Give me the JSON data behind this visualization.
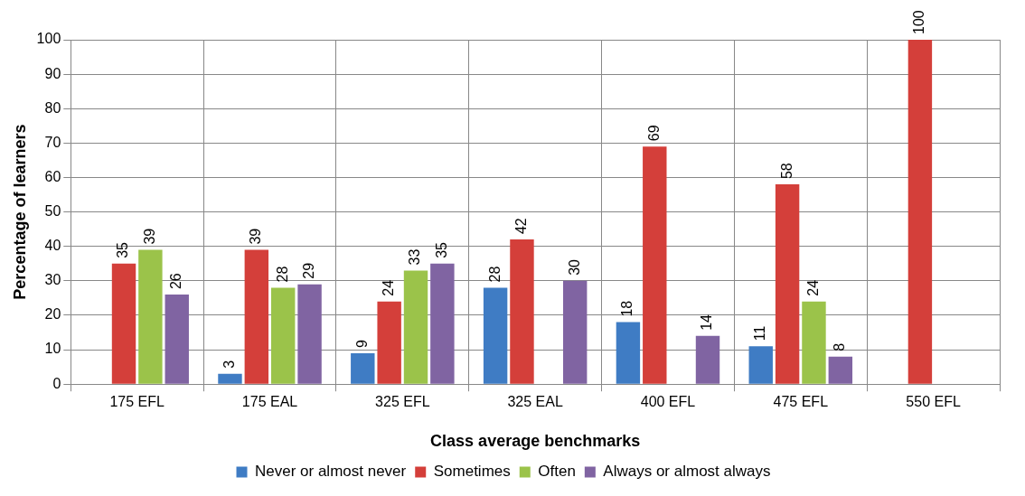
{
  "chart_data": {
    "type": "bar",
    "xlabel": "Class average benchmarks",
    "ylabel": "Percentage of learners",
    "categories": [
      "175 EFL",
      "175 EAL",
      "325 EFL",
      "325 EAL",
      "400 EFL",
      "475 EFL",
      "550 EFL"
    ],
    "series": [
      {
        "name": "Never or almost never",
        "color": "#3f7cc4",
        "values": [
          null,
          3,
          9,
          28,
          18,
          11,
          null
        ]
      },
      {
        "name": "Sometimes",
        "color": "#d43f3a",
        "values": [
          35,
          39,
          24,
          42,
          69,
          58,
          100
        ]
      },
      {
        "name": "Often",
        "color": "#9bc34a",
        "values": [
          39,
          28,
          33,
          null,
          null,
          24,
          null
        ]
      },
      {
        "name": "Always or almost always",
        "color": "#8064a2",
        "values": [
          26,
          29,
          35,
          30,
          14,
          8,
          null
        ]
      }
    ],
    "ylim": [
      0,
      100
    ],
    "yticks": [
      0,
      10,
      20,
      30,
      40,
      50,
      60,
      70,
      80,
      90,
      100
    ],
    "grid": true,
    "legend": "bottom",
    "data_labels": true
  }
}
